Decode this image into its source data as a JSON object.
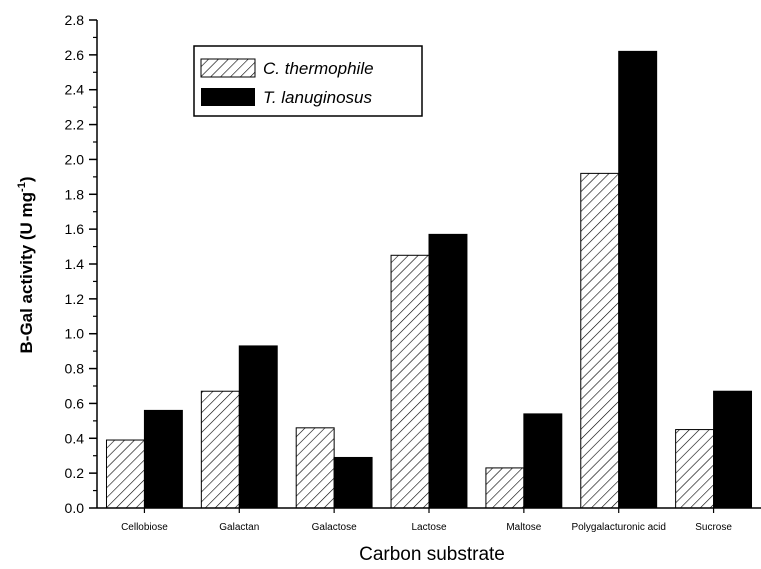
{
  "chart_data": {
    "type": "bar",
    "categories": [
      "Cellobiose",
      "Galactan",
      "Galactose",
      "Lactose",
      "Maltose",
      "Polygalacturonic acid",
      "Sucrose"
    ],
    "series": [
      {
        "name": "C. thermophile",
        "values": [
          0.39,
          0.67,
          0.46,
          1.45,
          0.23,
          1.92,
          0.45
        ],
        "pattern": "hatched",
        "color": "#000000"
      },
      {
        "name": "T. lanuginosus",
        "values": [
          0.56,
          0.93,
          0.29,
          1.57,
          0.54,
          2.62,
          0.67
        ],
        "pattern": "solid",
        "color": "#000000"
      }
    ],
    "xlabel": "Carbon substrate",
    "ylabel": {
      "main": "B-Gal activity (U mg",
      "superscript": "-1",
      "close": ")"
    },
    "ylim": [
      0,
      2.8
    ],
    "yticks": [
      "0.0",
      "0.2",
      "0.4",
      "0.6",
      "0.8",
      "1.0",
      "1.2",
      "1.4",
      "1.6",
      "1.8",
      "2.0",
      "2.2",
      "2.4",
      "2.6",
      "2.8"
    ],
    "grid": false,
    "legend_position": "top-left"
  }
}
